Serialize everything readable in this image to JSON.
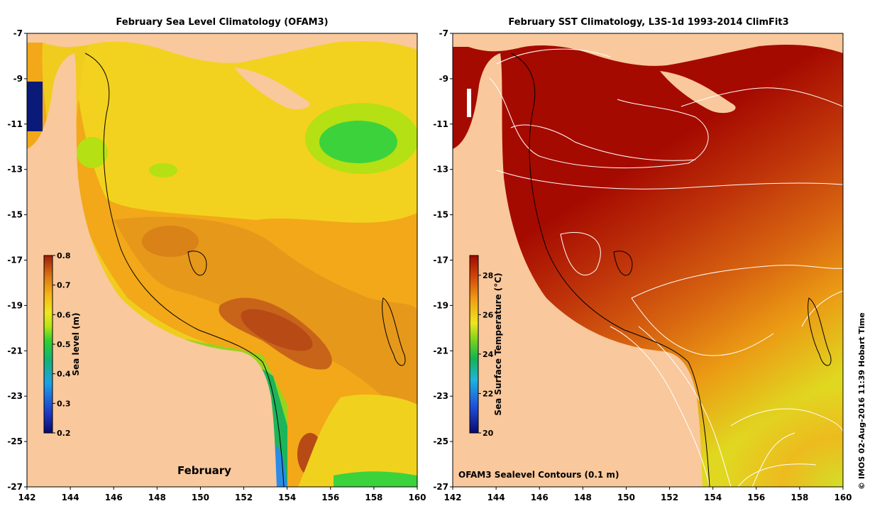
{
  "left_panel": {
    "title": "February Sea Level Climatology (OFAM3)",
    "month_label": "February",
    "colorbar": {
      "label": "Sea level (m)",
      "ticks": [
        "0.8",
        "0.7",
        "0.6",
        "0.5",
        "0.4",
        "0.3",
        "0.2"
      ],
      "min": 0.2,
      "max": 0.8
    },
    "lat_ticks": [
      "-7",
      "-9",
      "-11",
      "-13",
      "-15",
      "-17",
      "-19",
      "-21",
      "-23",
      "-25",
      "-27"
    ],
    "lon_ticks": [
      "142",
      "144",
      "146",
      "148",
      "150",
      "152",
      "154",
      "156",
      "158",
      "160"
    ]
  },
  "right_panel": {
    "title": "February SST Climatology, L3S-1d 1993-2014 ClimFit3",
    "contour_note": "OFAM3 Sealevel Contours (0.1 m)",
    "colorbar": {
      "label": "Sea Surface Temperature (°C)",
      "ticks": [
        "28",
        "26",
        "24",
        "22",
        "20"
      ],
      "min": 20,
      "max": 29
    },
    "lat_ticks": [
      "-7",
      "-9",
      "-11",
      "-13",
      "-15",
      "-17",
      "-19",
      "-21",
      "-23",
      "-25",
      "-27"
    ],
    "lon_ticks": [
      "142",
      "144",
      "146",
      "148",
      "150",
      "152",
      "154",
      "156",
      "158",
      "160"
    ]
  },
  "credit": "© IMOS 02-Aug-2016 11:39 Hobart Time",
  "colors": {
    "land": "#f9c89c",
    "sst_hot": "#a50a00",
    "contour": "#ffffff"
  }
}
